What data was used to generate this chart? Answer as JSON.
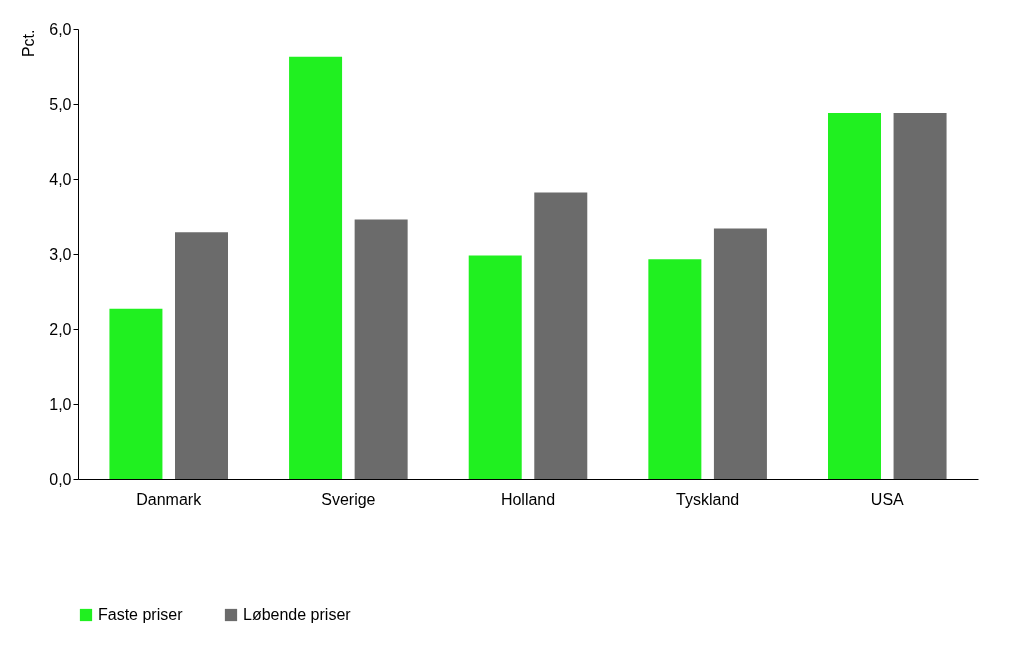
{
  "chart_data": {
    "type": "bar",
    "ylabel": "Pct.",
    "categories": [
      "Danmark",
      "Sverige",
      "Holland",
      "Tyskland",
      "USA"
    ],
    "series": [
      {
        "name": "Faste priser",
        "color": "#20f020",
        "values": [
          2.27,
          5.63,
          2.98,
          2.93,
          4.88
        ]
      },
      {
        "name": "Løbende priser",
        "color": "#6b6b6b",
        "values": [
          3.29,
          3.46,
          3.82,
          3.34,
          4.88
        ]
      }
    ],
    "ylim": [
      0,
      6
    ],
    "yticks": [
      {
        "value": 0,
        "label": "0,0"
      },
      {
        "value": 1,
        "label": "1,0"
      },
      {
        "value": 2,
        "label": "2,0"
      },
      {
        "value": 3,
        "label": "3,0"
      },
      {
        "value": 4,
        "label": "4,0"
      },
      {
        "value": 5,
        "label": "5,0"
      },
      {
        "value": 6,
        "label": "6,0"
      }
    ],
    "grid": false,
    "legend": "bottom"
  }
}
